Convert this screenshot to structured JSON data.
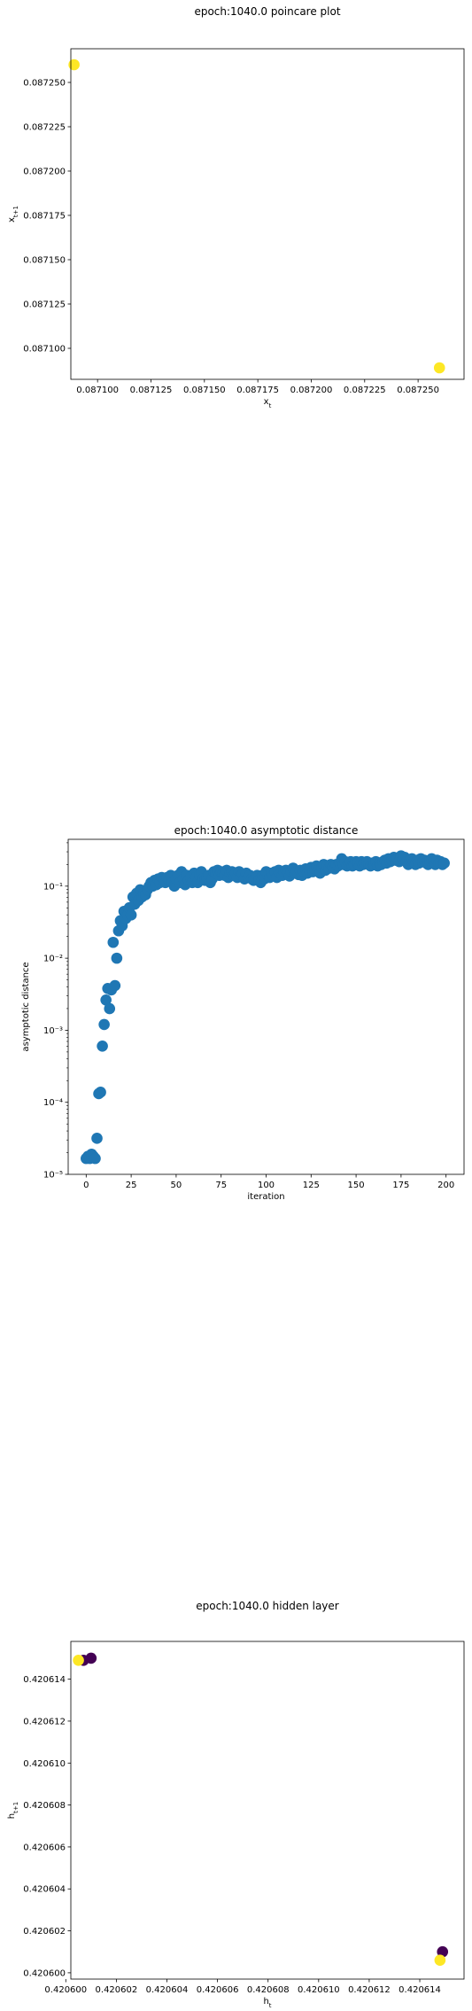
{
  "chart_data": [
    {
      "type": "scatter",
      "title": "epoch:1040.0 poincare plot",
      "xlabel": "x_t",
      "ylabel": "x_{t+1}",
      "xlim": [
        0.0870875,
        0.0872715
      ],
      "ylim": [
        0.0870825,
        0.087269
      ],
      "xticks": [
        0.0871,
        0.087125,
        0.08715,
        0.087175,
        0.0872,
        0.087225,
        0.08725
      ],
      "xtick_labels": [
        "0.087100",
        "0.087125",
        "0.087150",
        "0.087175",
        "0.087200",
        "0.087225",
        "0.087250"
      ],
      "yticks": [
        0.0871,
        0.087125,
        0.08715,
        0.087175,
        0.0872,
        0.087225,
        0.08725
      ],
      "ytick_labels": [
        "0.087100",
        "0.087125",
        "0.087150",
        "0.087175",
        "0.087200",
        "0.087225",
        "0.087250"
      ],
      "grid": false,
      "points": [
        {
          "x": 0.087089,
          "y": 0.08726,
          "color": "#fde725"
        },
        {
          "x": 0.08726,
          "y": 0.087089,
          "color": "#fde725"
        }
      ]
    },
    {
      "type": "scatter",
      "title": "epoch:1040.0 asymptotic distance",
      "xlabel": "iteration",
      "ylabel": "asymptotic distance",
      "xlim": [
        -10,
        210
      ],
      "ylim": [
        -5,
        -0.35
      ],
      "yscale": "log",
      "xticks": [
        0,
        25,
        50,
        75,
        100,
        125,
        150,
        175,
        200
      ],
      "xtick_labels": [
        "0",
        "25",
        "50",
        "75",
        "100",
        "125",
        "150",
        "175",
        "200"
      ],
      "yticks": [
        -5,
        -4,
        -3,
        -2,
        -1
      ],
      "ytick_labels": [
        "10⁻⁵",
        "10⁻⁴",
        "10⁻³",
        "10⁻²",
        "10⁻¹"
      ],
      "grid": false,
      "color": "#1f77b4",
      "x_start": 0,
      "x_step": 1,
      "log10_values": [
        -4.78,
        -4.75,
        -4.78,
        -4.72,
        -4.75,
        -4.78,
        -4.5,
        -3.88,
        -3.86,
        -3.22,
        -2.92,
        -2.58,
        -2.42,
        -2.7,
        -2.44,
        -1.78,
        -2.38,
        -2.0,
        -1.62,
        -1.48,
        -1.55,
        -1.35,
        -1.45,
        -1.4,
        -1.3,
        -1.4,
        -1.15,
        -1.25,
        -1.1,
        -1.2,
        -1.05,
        -1.15,
        -1.1,
        -1.12,
        -1.05,
        -1.0,
        -0.95,
        -1.0,
        -0.92,
        -0.98,
        -0.9,
        -0.95,
        -0.88,
        -0.93,
        -0.95,
        -0.88,
        -0.92,
        -0.85,
        -0.95,
        -1.0,
        -0.9,
        -0.85,
        -0.95,
        -0.8,
        -0.9,
        -0.98,
        -0.85,
        -0.92,
        -0.88,
        -0.95,
        -0.82,
        -0.88,
        -0.95,
        -0.85,
        -0.8,
        -0.9,
        -0.92,
        -0.88,
        -0.85,
        -0.95,
        -0.9,
        -0.8,
        -0.82,
        -0.78,
        -0.85,
        -0.8,
        -0.82,
        -0.85,
        -0.78,
        -0.88,
        -0.82,
        -0.8,
        -0.85,
        -0.82,
        -0.88,
        -0.8,
        -0.85,
        -0.83,
        -0.9,
        -0.82,
        -0.88,
        -0.85,
        -0.9,
        -0.92,
        -0.88,
        -0.85,
        -0.92,
        -0.95,
        -0.85,
        -0.9,
        -0.8,
        -0.85,
        -0.88,
        -0.82,
        -0.85,
        -0.8,
        -0.88,
        -0.78,
        -0.82,
        -0.85,
        -0.8,
        -0.78,
        -0.82,
        -0.86,
        -0.8,
        -0.75,
        -0.82,
        -0.8,
        -0.84,
        -0.78,
        -0.85,
        -0.8,
        -0.76,
        -0.82,
        -0.78,
        -0.74,
        -0.8,
        -0.76,
        -0.72,
        -0.78,
        -0.82,
        -0.74,
        -0.7,
        -0.78,
        -0.72,
        -0.75,
        -0.7,
        -0.74,
        -0.76,
        -0.7,
        -0.72,
        -0.68,
        -0.62,
        -0.7,
        -0.66,
        -0.72,
        -0.68,
        -0.66,
        -0.72,
        -0.7,
        -0.66,
        -0.68,
        -0.72,
        -0.66,
        -0.7,
        -0.68,
        -0.66,
        -0.7,
        -0.72,
        -0.68,
        -0.7,
        -0.66,
        -0.72,
        -0.68,
        -0.7,
        -0.66,
        -0.64,
        -0.68,
        -0.62,
        -0.66,
        -0.64,
        -0.6,
        -0.64,
        -0.62,
        -0.66,
        -0.58,
        -0.62,
        -0.6,
        -0.66,
        -0.7,
        -0.64,
        -0.62,
        -0.66,
        -0.7,
        -0.64,
        -0.68,
        -0.62,
        -0.66,
        -0.64,
        -0.68,
        -0.7,
        -0.64,
        -0.62,
        -0.66,
        -0.7,
        -0.64,
        -0.68,
        -0.66,
        -0.7,
        -0.68
      ]
    },
    {
      "type": "scatter",
      "title": "epoch:1040.0 hidden layer",
      "xlabel": "h_t",
      "ylabel": "h_{t+1}",
      "xlim": [
        0.4206002,
        0.42061575
      ],
      "ylim": [
        0.4205997,
        0.4206158
      ],
      "xticks": [
        0.4206,
        0.420602,
        0.420604,
        0.420606,
        0.420608,
        0.42061,
        0.420612,
        0.420614
      ],
      "xtick_labels": [
        "0.420600",
        "0.420602",
        "0.420604",
        "0.420606",
        "0.420608",
        "0.420610",
        "0.420612",
        "0.420614"
      ],
      "yticks": [
        0.4206,
        0.420602,
        0.420604,
        0.420606,
        0.420608,
        0.42061,
        0.420612,
        0.420614
      ],
      "ytick_labels": [
        "0.420600",
        "0.420602",
        "0.420604",
        "0.420606",
        "0.420608",
        "0.420610",
        "0.420612",
        "0.420614"
      ],
      "grid": false,
      "points": [
        {
          "x": 0.420601,
          "y": 0.420615,
          "color": "#440154"
        },
        {
          "x": 0.4206007,
          "y": 0.4206149,
          "color": "#440154"
        },
        {
          "x": 0.4206005,
          "y": 0.4206149,
          "color": "#fde725"
        },
        {
          "x": 0.4206149,
          "y": 0.420601,
          "color": "#440154"
        },
        {
          "x": 0.4206148,
          "y": 0.4206006,
          "color": "#fde725"
        }
      ]
    }
  ]
}
